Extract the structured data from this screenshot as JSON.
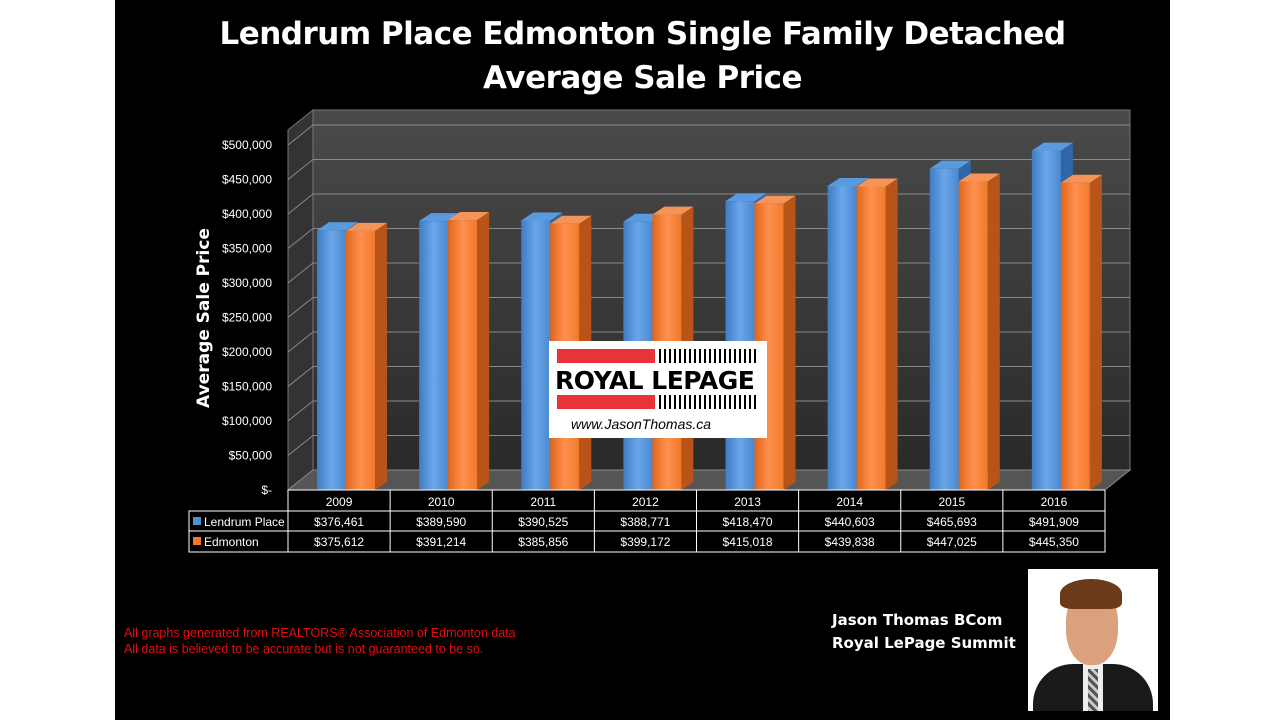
{
  "title_line1": "Lendrum Place Edmonton Single Family Detached",
  "title_line2": "Average Sale Price",
  "chart_data": {
    "type": "bar",
    "ylabel": "Average Sale Price",
    "ylim": [
      0,
      500000
    ],
    "yticks": [
      "$-",
      "$50,000",
      "$100,000",
      "$150,000",
      "$200,000",
      "$250,000",
      "$300,000",
      "$350,000",
      "$400,000",
      "$450,000",
      "$500,000"
    ],
    "categories": [
      "2009",
      "2010",
      "2011",
      "2012",
      "2013",
      "2014",
      "2015",
      "2016"
    ],
    "series": [
      {
        "name": "Lendrum Place",
        "color": "#4f8fd6",
        "labels": [
          "$376,461",
          "$389,590",
          "$390,525",
          "$388,771",
          "$418,470",
          "$440,603",
          "$465,693",
          "$491,909"
        ],
        "values": [
          376461,
          389590,
          390525,
          388771,
          418470,
          440603,
          465693,
          491909
        ]
      },
      {
        "name": "Edmonton",
        "color": "#f07a2a",
        "labels": [
          "$375,612",
          "$391,214",
          "$385,856",
          "$399,172",
          "$415,018",
          "$439,838",
          "$447,025",
          "$445,350"
        ],
        "values": [
          375612,
          391214,
          385856,
          399172,
          415018,
          439838,
          447025,
          445350
        ]
      }
    ],
    "grid": true,
    "legend": "data-table"
  },
  "logo": {
    "brand": "ROYAL LEPAGE",
    "url": "www.JasonThomas.ca"
  },
  "footnote_line1": "All graphs generated from REALTORS® Association of Edmonton data",
  "footnote_line2": "All data is believed to be accurate but is not guaranteed to be so.",
  "signature_name": "Jason Thomas BCom",
  "signature_company": "Royal LePage Summit"
}
